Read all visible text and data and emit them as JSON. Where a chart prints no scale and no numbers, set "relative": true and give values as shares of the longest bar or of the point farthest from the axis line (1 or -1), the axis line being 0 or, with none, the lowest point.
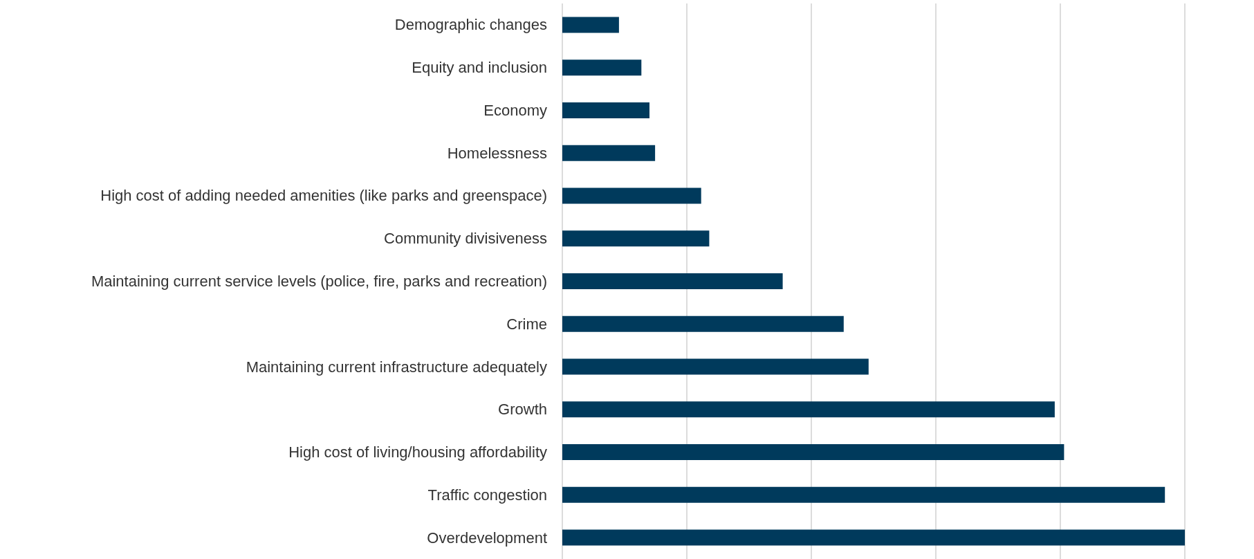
{
  "chart_data": {
    "type": "bar",
    "orientation": "horizontal",
    "relative": true,
    "grid": "x",
    "categories": [
      "Demographic changes",
      "Equity and inclusion",
      "Economy",
      "Homelessness",
      "High cost of adding needed amenities (like parks and greenspace)",
      "Community divisiveness",
      "Maintaining current service levels (police, fire, parks and recreation)",
      "Crime",
      "Maintaining current infrastructure adequately",
      "Growth",
      "High cost of living/housing affordability",
      "Traffic congestion",
      "Overdevelopment"
    ],
    "values": [
      0.091,
      0.127,
      0.14,
      0.149,
      0.223,
      0.236,
      0.354,
      0.452,
      0.492,
      0.791,
      0.806,
      0.968,
      1
    ],
    "color": "#003a5c"
  }
}
